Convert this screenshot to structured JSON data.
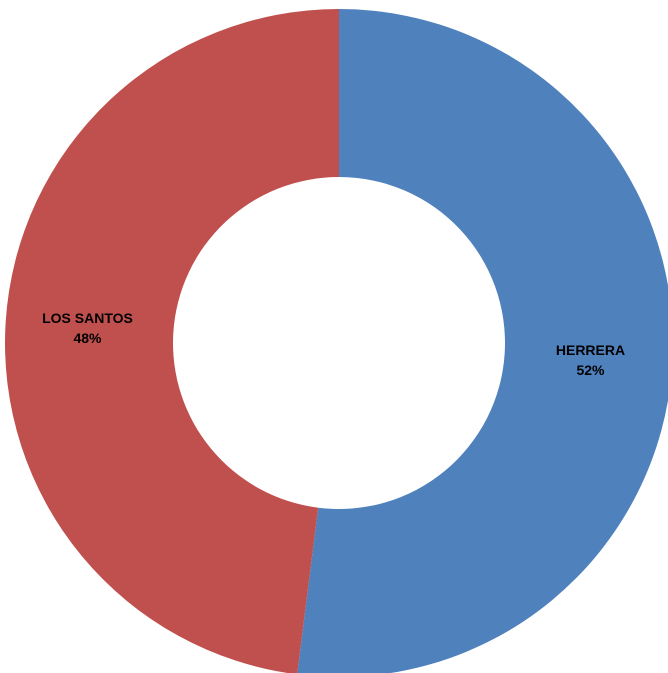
{
  "chart_data": {
    "type": "pie",
    "variant": "donut",
    "title": "",
    "legend": "none",
    "categories": [
      "HERRERA",
      "LOS SANTOS"
    ],
    "values": [
      52,
      48
    ],
    "value_format": "percent",
    "colors": [
      "#4F81BD",
      "#C0504D"
    ],
    "labels": [
      {
        "category": "HERRERA",
        "percent_text": "52%"
      },
      {
        "category": "LOS SANTOS",
        "percent_text": "48%"
      }
    ]
  }
}
